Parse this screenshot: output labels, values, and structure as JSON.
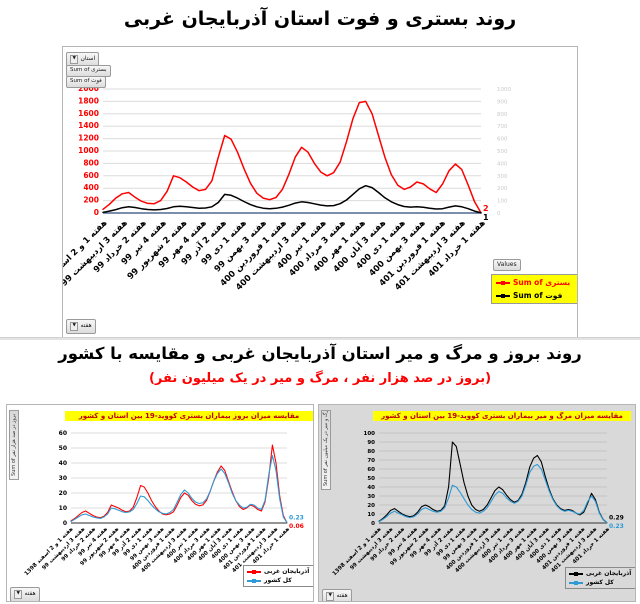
{
  "page": {
    "bottom_title": "روند بروز و مرگ و میر استان آذربایجان غربی و مقایسه با کشور",
    "bottom_subtitle": "(بروز در صد هزار نفر ، مرگ و میر در یک میلیون نفر)"
  },
  "pivot": {
    "province_filter": "استان",
    "week_field": "هفته",
    "values_button": "Values",
    "top_value_fields": [
      "Sum of بستری",
      "Sum of فوت"
    ],
    "left_value_field": "Sum of بروز در صد هزار نفر",
    "right_value_field": "Sum of مرگ و میر در یک میلیون نفر"
  },
  "icons": {
    "dropdown_arrow": "▼"
  },
  "colors": {
    "accent_red": "#FF0000",
    "series_black": "#000000",
    "country_blue": "#2E9BD6",
    "highlight_yellow": "#FFFF00",
    "chart_title_maroon": "#C00000"
  },
  "week_labels": [
    "هفته 1 و 2 اسفند 1398",
    "هفته 3 اردیبهشت 99",
    "هفته 2 خرداد 99",
    "هفته 4 تیر 99",
    "هفته 2 شهریور 99",
    "هفته 4 مهر 99",
    "هفته 2 آذر 99",
    "هفته 1 دی 99",
    "هفته 3 بهمن 99",
    "هفته 1 فروردین 400",
    "هفته 3 اردیبهشت 400",
    "هفته 1 تیر 400",
    "هفته 3 مرداد 400",
    "هفته 1 مهر 400",
    "هفته 3 آبان 400",
    "هفته 1 دی 400",
    "هفته 3 بهمن 400",
    "هفته 1 فروردین 401",
    "هفته 3 اردیبهشت 401",
    "هفته 1 خرداد 401"
  ],
  "chart_data": [
    {
      "id": "hospitalization-death",
      "type": "line",
      "title": "روند بستری و فوت استان آذربایجان غربی",
      "xlabel": "هفته",
      "ylabel": "",
      "ylim": [
        0,
        2000
      ],
      "ytick_step": 200,
      "ylim_right": [
        0,
        1000
      ],
      "grid": true,
      "legend_position": "right-bottom",
      "series": [
        {
          "name": "Sum of بستری",
          "color": "#FF0000",
          "end_label": "2",
          "label_offset": -4,
          "values": [
            60,
            140,
            240,
            310,
            330,
            255,
            190,
            155,
            150,
            200,
            350,
            600,
            570,
            500,
            420,
            360,
            380,
            520,
            900,
            1250,
            1190,
            980,
            720,
            480,
            320,
            240,
            215,
            250,
            380,
            620,
            900,
            1060,
            980,
            800,
            660,
            600,
            650,
            820,
            1150,
            1520,
            1780,
            1800,
            1600,
            1250,
            900,
            620,
            450,
            380,
            420,
            500,
            470,
            390,
            330,
            470,
            680,
            790,
            700,
            450,
            180,
            2
          ]
        },
        {
          "name": "Sum of فوت",
          "color": "#000000",
          "end_label": "1",
          "label_offset": 5,
          "values": [
            12,
            30,
            55,
            85,
            100,
            88,
            70,
            56,
            50,
            56,
            72,
            100,
            110,
            100,
            88,
            76,
            80,
            100,
            170,
            300,
            285,
            240,
            185,
            135,
            100,
            78,
            68,
            75,
            95,
            125,
            160,
            180,
            170,
            148,
            128,
            115,
            120,
            150,
            210,
            300,
            390,
            440,
            410,
            330,
            245,
            180,
            135,
            105,
            95,
            100,
            92,
            78,
            64,
            70,
            95,
            115,
            100,
            70,
            30,
            1
          ]
        }
      ]
    },
    {
      "id": "incidence-comparison",
      "type": "line",
      "title": "مقایسه میزان بروز بیماران بستری کووید-19 بین استان و کشور",
      "xlabel": "هفته",
      "ylabel": "بروز در صد هزار نفر",
      "ylim": [
        0,
        60
      ],
      "ytick_step": 10,
      "grid": true,
      "legend_position": "right-bottom",
      "series": [
        {
          "name": "آذربایجان غربی",
          "color": "#FF0000",
          "end_label": "0.06",
          "label_offset": 3,
          "values": [
            1.5,
            3,
            5,
            7,
            8,
            6.5,
            5,
            4,
            3.5,
            4.5,
            7,
            12,
            11,
            10,
            8.5,
            7.5,
            8,
            10.5,
            17,
            25,
            24,
            20,
            15,
            11,
            8,
            6,
            5.5,
            6,
            7.5,
            12,
            17,
            20,
            18.5,
            15,
            12.5,
            11.5,
            12,
            15,
            21,
            28,
            34,
            38,
            35,
            28,
            21,
            15,
            11,
            9,
            10,
            12,
            11,
            9,
            8,
            14,
            30,
            52,
            40,
            18,
            5,
            0.06
          ]
        },
        {
          "name": "کل کشور",
          "color": "#2E9BD6",
          "end_label": "0.23",
          "label_offset": -5,
          "values": [
            1,
            2.5,
            4,
            5.5,
            6,
            5,
            4,
            3.5,
            3,
            4,
            6,
            10,
            9.5,
            8.5,
            7.5,
            7,
            7.5,
            9,
            13,
            18,
            17.5,
            15,
            12,
            9.5,
            7.5,
            6.5,
            6,
            7,
            9,
            14,
            19,
            22,
            20,
            16.5,
            14,
            13,
            13.5,
            16,
            21,
            28,
            33,
            36,
            33,
            27,
            20,
            15,
            12,
            10,
            10.5,
            12.5,
            12,
            10,
            9,
            15,
            32,
            45,
            35,
            16,
            4,
            0.23
          ]
        }
      ]
    },
    {
      "id": "mortality-comparison",
      "type": "line",
      "title": "مقایسه میزان مرگ و میر بیماران بستری کووید-19 بین استان و کشور",
      "xlabel": "هفته",
      "ylabel": "مرگ و میر در یک میلیون نفر",
      "ylim": [
        0,
        100
      ],
      "ytick_step": 10,
      "grid": true,
      "legend_position": "right-bottom",
      "series": [
        {
          "name": "آذربایجان غربی",
          "color": "#000000",
          "end_label": "0.29",
          "label_offset": -5,
          "values": [
            2,
            5,
            9,
            14,
            16,
            13,
            10,
            8,
            7,
            8,
            12,
            18,
            20,
            18,
            15,
            13,
            14,
            19,
            40,
            90,
            85,
            65,
            45,
            30,
            20,
            15,
            13,
            15,
            20,
            28,
            36,
            40,
            37,
            31,
            26,
            23,
            25,
            32,
            45,
            62,
            72,
            75,
            68,
            52,
            38,
            27,
            20,
            16,
            14,
            15,
            14,
            11,
            9,
            12,
            22,
            33,
            26,
            12,
            4,
            0.29
          ]
        },
        {
          "name": "کل کشور",
          "color": "#2E9BD6",
          "end_label": "0.23",
          "label_offset": 3,
          "values": [
            1.5,
            4,
            7,
            11,
            13,
            11,
            9,
            7,
            6,
            7,
            10,
            15,
            17,
            15,
            13,
            12,
            13,
            17,
            28,
            42,
            40,
            34,
            27,
            20,
            15,
            12,
            11,
            13,
            17,
            24,
            31,
            35,
            33,
            28,
            24,
            22,
            24,
            30,
            42,
            56,
            63,
            65,
            60,
            48,
            36,
            26,
            19,
            15,
            13,
            14,
            13,
            11,
            10,
            14,
            24,
            30,
            24,
            11,
            3.5,
            0.23
          ]
        }
      ]
    }
  ]
}
